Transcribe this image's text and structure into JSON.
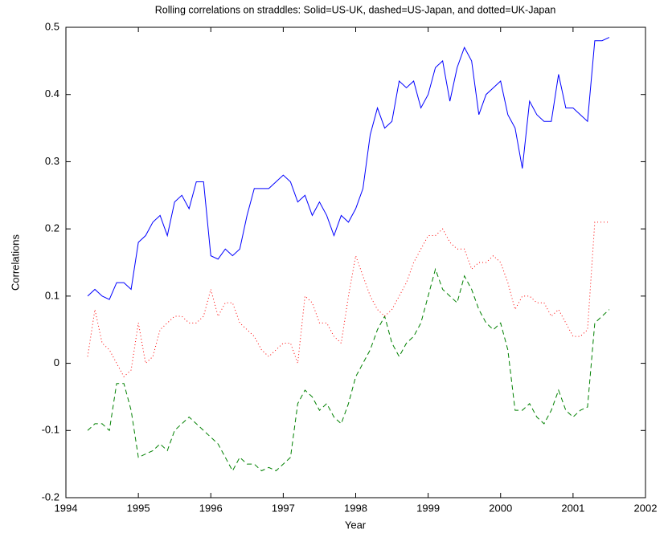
{
  "chart_data": {
    "type": "line",
    "title": "Rolling correlations on straddles: Solid=US-UK, dashed=US-Japan, and dotted=UK-Japan",
    "x_label": "Year",
    "y_label": "Correlations",
    "x": [
      1994.3,
      1994.4,
      1994.5,
      1994.6,
      1994.7,
      1994.8,
      1994.9,
      1995.0,
      1995.1,
      1995.2,
      1995.3,
      1995.4,
      1995.5,
      1995.6,
      1995.7,
      1995.8,
      1995.9,
      1996.0,
      1996.1,
      1996.2,
      1996.3,
      1996.4,
      1996.5,
      1996.6,
      1996.7,
      1996.8,
      1996.9,
      1997.0,
      1997.1,
      1997.2,
      1997.3,
      1997.4,
      1997.5,
      1997.6,
      1997.7,
      1997.8,
      1997.9,
      1998.0,
      1998.1,
      1998.2,
      1998.3,
      1998.4,
      1998.5,
      1998.6,
      1998.7,
      1998.8,
      1998.9,
      1999.0,
      1999.1,
      1999.2,
      1999.3,
      1999.4,
      1999.5,
      1999.6,
      1999.7,
      1999.8,
      1999.9,
      2000.0,
      2000.1,
      2000.2,
      2000.3,
      2000.4,
      2000.5,
      2000.6,
      2000.7,
      2000.8,
      2000.9,
      2001.0,
      2001.1,
      2001.2,
      2001.3,
      2001.4,
      2001.5
    ],
    "series": [
      {
        "color": "#0000ff",
        "linestyle": "solid",
        "values": [
          0.1,
          0.11,
          0.1,
          0.095,
          0.12,
          0.12,
          0.11,
          0.18,
          0.19,
          0.21,
          0.22,
          0.19,
          0.24,
          0.25,
          0.23,
          0.27,
          0.27,
          0.16,
          0.155,
          0.17,
          0.16,
          0.17,
          0.22,
          0.26,
          0.26,
          0.26,
          0.27,
          0.28,
          0.27,
          0.24,
          0.25,
          0.22,
          0.24,
          0.22,
          0.19,
          0.22,
          0.21,
          0.23,
          0.26,
          0.34,
          0.38,
          0.35,
          0.36,
          0.42,
          0.41,
          0.42,
          0.38,
          0.4,
          0.44,
          0.45,
          0.39,
          0.44,
          0.47,
          0.45,
          0.37,
          0.4,
          0.41,
          0.42,
          0.37,
          0.35,
          0.29,
          0.39,
          0.37,
          0.36,
          0.36,
          0.43,
          0.38,
          0.38,
          0.37,
          0.36,
          0.48,
          0.48,
          0.485
        ]
      },
      {
        "color": "#008000",
        "linestyle": "dashed",
        "values": [
          -0.1,
          -0.09,
          -0.09,
          -0.1,
          -0.03,
          -0.03,
          -0.07,
          -0.14,
          -0.135,
          -0.13,
          -0.12,
          -0.13,
          -0.1,
          -0.09,
          -0.08,
          -0.09,
          -0.1,
          -0.11,
          -0.12,
          -0.14,
          -0.16,
          -0.14,
          -0.15,
          -0.15,
          -0.16,
          -0.155,
          -0.16,
          -0.15,
          -0.14,
          -0.06,
          -0.04,
          -0.05,
          -0.07,
          -0.06,
          -0.08,
          -0.09,
          -0.06,
          -0.02,
          0.0,
          0.02,
          0.05,
          0.07,
          0.03,
          0.01,
          0.03,
          0.04,
          0.06,
          0.1,
          0.14,
          0.11,
          0.1,
          0.09,
          0.13,
          0.11,
          0.08,
          0.06,
          0.05,
          0.06,
          0.02,
          -0.07,
          -0.07,
          -0.06,
          -0.08,
          -0.09,
          -0.07,
          -0.04,
          -0.07,
          -0.08,
          -0.07,
          -0.065,
          0.06,
          0.07,
          0.08
        ]
      },
      {
        "color": "#ff0000",
        "linestyle": "dotted",
        "values": [
          0.01,
          0.08,
          0.03,
          0.02,
          0.0,
          -0.02,
          -0.01,
          0.06,
          0.0,
          0.01,
          0.05,
          0.06,
          0.07,
          0.07,
          0.06,
          0.06,
          0.07,
          0.11,
          0.07,
          0.09,
          0.09,
          0.06,
          0.05,
          0.04,
          0.02,
          0.01,
          0.02,
          0.03,
          0.03,
          0.0,
          0.1,
          0.09,
          0.06,
          0.06,
          0.04,
          0.03,
          0.1,
          0.16,
          0.13,
          0.1,
          0.08,
          0.07,
          0.08,
          0.1,
          0.12,
          0.15,
          0.17,
          0.19,
          0.19,
          0.2,
          0.18,
          0.17,
          0.17,
          0.14,
          0.15,
          0.15,
          0.16,
          0.15,
          0.12,
          0.08,
          0.1,
          0.1,
          0.09,
          0.09,
          0.07,
          0.08,
          0.06,
          0.04,
          0.04,
          0.05,
          0.21,
          0.21,
          0.21
        ]
      }
    ],
    "xlim": [
      1994,
      2002
    ],
    "xticks": [
      1994,
      1995,
      1996,
      1997,
      1998,
      1999,
      2000,
      2001,
      2002
    ],
    "ylim": [
      -0.2,
      0.5
    ],
    "yticks": [
      -0.2,
      -0.1,
      0,
      0.1,
      0.2,
      0.3,
      0.4,
      0.5
    ],
    "grid": false
  }
}
